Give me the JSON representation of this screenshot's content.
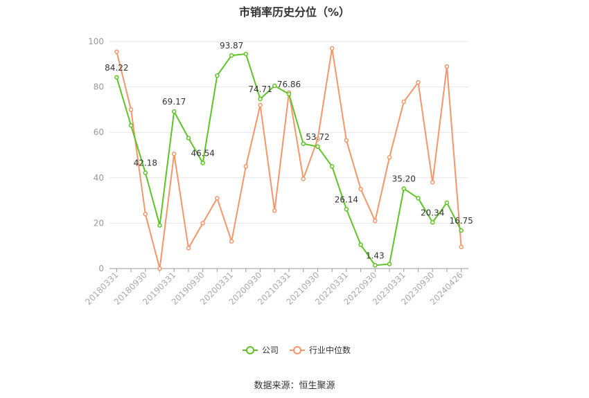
{
  "chart_data": {
    "type": "line",
    "title": "市销率历史分位（%）",
    "xlabel": "",
    "ylabel": "",
    "ylim": [
      0,
      100
    ],
    "yticks": [
      0,
      20,
      40,
      60,
      80,
      100
    ],
    "grid": true,
    "legend_position": "bottom",
    "x": [
      "20180331",
      "20180630",
      "20180930",
      "20181231",
      "20190331",
      "20190630",
      "20190930",
      "20191231",
      "20200331",
      "20200630",
      "20200930",
      "20201231",
      "20210331",
      "20210630",
      "20210930",
      "20211231",
      "20220331",
      "20220630",
      "20220930",
      "20221231",
      "20230331",
      "20230630",
      "20230930",
      "20231231",
      "20240426"
    ],
    "x_tick_labels": [
      "20180331",
      "20180930",
      "20190331",
      "20190930",
      "20200331",
      "20200930",
      "20210331",
      "20210930",
      "20220331",
      "20220930",
      "20230331",
      "20230930",
      "20240426"
    ],
    "series": [
      {
        "name": "公司",
        "color": "#5ec424",
        "values": [
          84.22,
          63.0,
          42.18,
          19.0,
          69.17,
          57.5,
          46.54,
          85.0,
          93.87,
          94.5,
          74.71,
          80.5,
          76.86,
          55.0,
          53.72,
          45.0,
          26.14,
          10.5,
          1.43,
          2.0,
          35.2,
          31.0,
          20.34,
          29.0,
          16.75
        ],
        "data_labels": {
          "0": "84.22",
          "2": "42.18",
          "4": "69.17",
          "6": "46.54",
          "8": "93.87",
          "10": "74.71",
          "12": "76.86",
          "14": "53.72",
          "16": "26.14",
          "18": "1.43",
          "20": "35.20",
          "22": "20.34",
          "24": "16.75"
        }
      },
      {
        "name": "行业中位数",
        "color": "#f4956a",
        "values": [
          95.5,
          70.0,
          24.0,
          0.0,
          50.5,
          9.0,
          20.0,
          31.0,
          12.0,
          45.0,
          72.0,
          25.5,
          77.5,
          39.5,
          57.0,
          97.0,
          56.5,
          35.0,
          21.0,
          49.0,
          73.5,
          82.0,
          38.0,
          89.0,
          9.5
        ]
      }
    ]
  },
  "footer": {
    "source": "数据来源：恒生聚源"
  }
}
